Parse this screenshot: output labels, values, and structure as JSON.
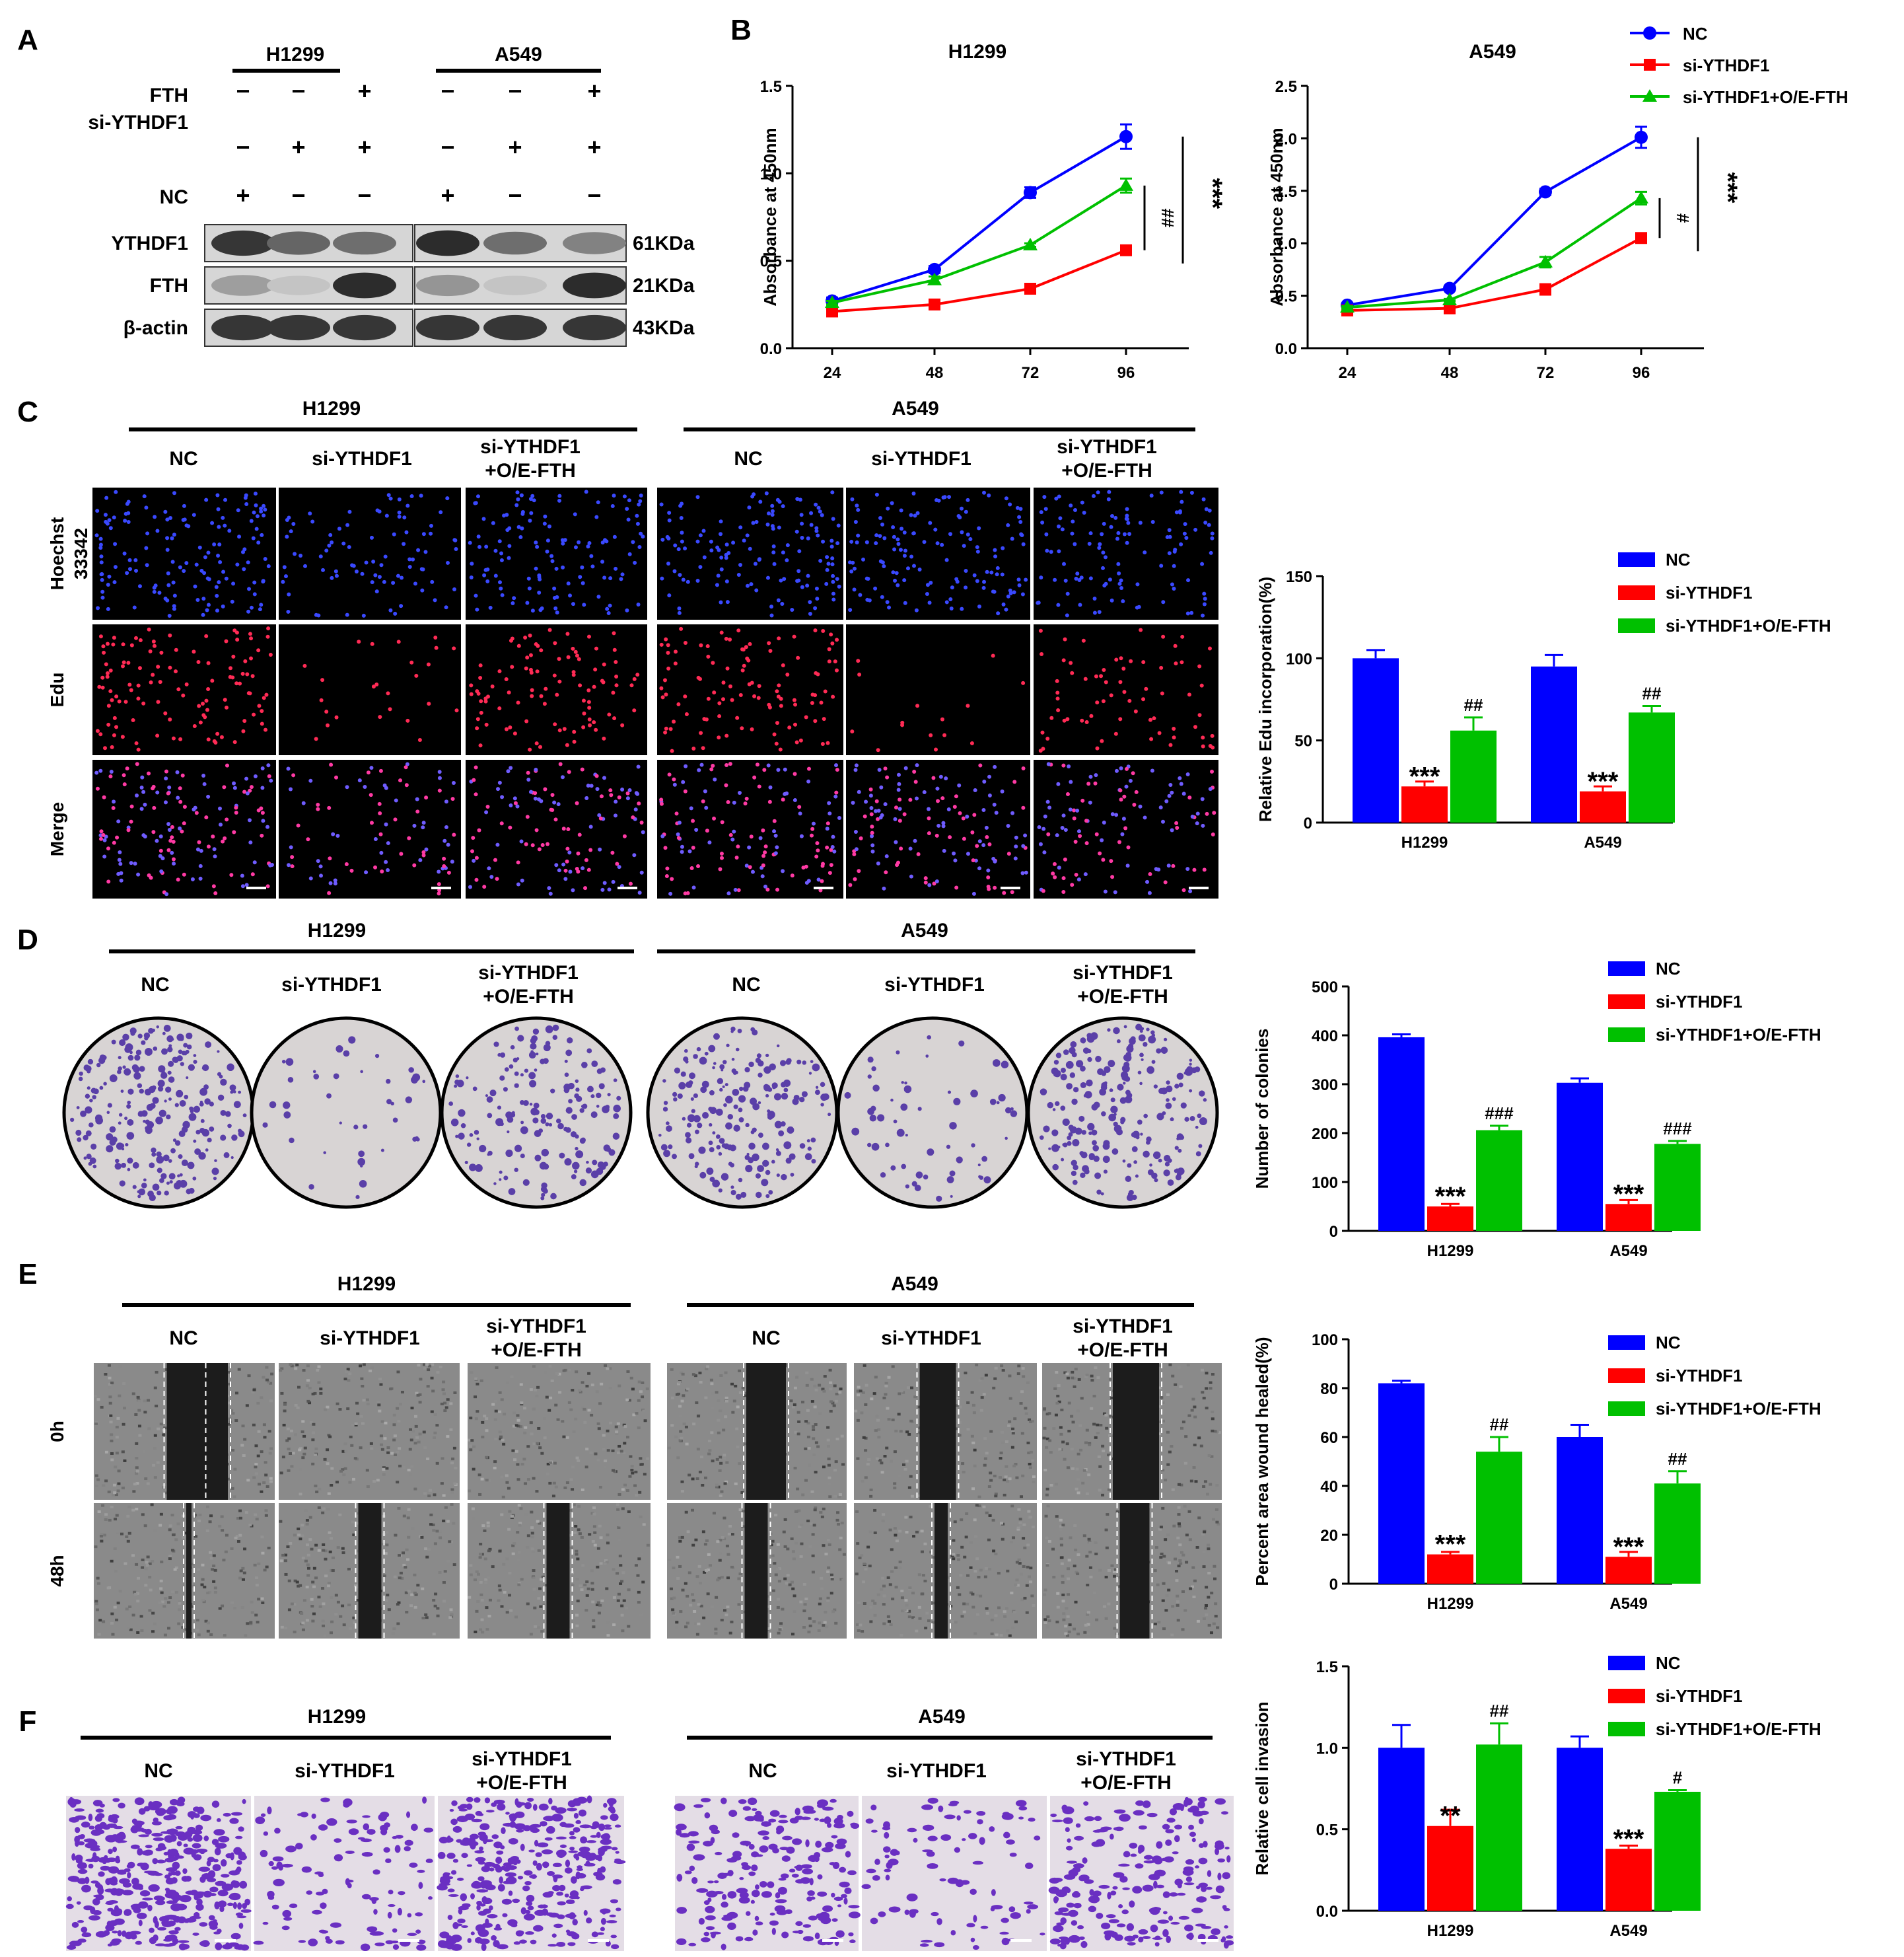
{
  "colors": {
    "nc": "#0000ff",
    "si": "#ff0000",
    "oe": "#00c000"
  },
  "groups": [
    "NC",
    "si-YTHDF1",
    "si-YTHDF1+O/E-FTH"
  ],
  "cells": [
    "H1299",
    "A549"
  ],
  "panelA": {
    "letter": "A",
    "cells": [
      "H1299",
      "A549"
    ],
    "rowFTH": "FTH",
    "rowSi": "si-YTHDF1",
    "rowNC": "NC",
    "signsFTH": [
      "−",
      "−",
      "+",
      "−",
      "−",
      "+"
    ],
    "signsSi": [
      "−",
      "+",
      "+",
      "−",
      "+",
      "+"
    ],
    "signsNC": [
      "+",
      "−",
      "−",
      "+",
      "−",
      "−"
    ],
    "blots": [
      {
        "name": "YTHDF1",
        "size": "61KDa",
        "intensity": [
          0.85,
          0.6,
          0.55,
          0.9,
          0.55,
          0.45
        ]
      },
      {
        "name": "FTH",
        "size": "21KDa",
        "intensity": [
          0.3,
          0.1,
          0.9,
          0.35,
          0.1,
          0.9
        ]
      },
      {
        "name": "β-actin",
        "size": "43KDa",
        "intensity": [
          0.85,
          0.85,
          0.85,
          0.85,
          0.85,
          0.85
        ]
      }
    ]
  },
  "panelB": {
    "letter": "B",
    "legend": [
      "NC",
      "si-YTHDF1",
      "si-YTHDF1+O/E-FTH"
    ],
    "chart_data": [
      {
        "type": "line",
        "title": "H1299",
        "ylabel": "Absorbance at 450nm",
        "x": [
          24,
          48,
          72,
          96
        ],
        "ylim": [
          0,
          1.5
        ],
        "yticks": [
          "0.0",
          "0.5",
          "1.0",
          "1.5"
        ],
        "series": [
          {
            "name": "NC",
            "values": [
              0.27,
              0.45,
              0.89,
              1.21
            ],
            "err": [
              0.02,
              0.02,
              0.03,
              0.07
            ]
          },
          {
            "name": "si-YTHDF1",
            "values": [
              0.21,
              0.25,
              0.34,
              0.56
            ],
            "err": [
              0.01,
              0.01,
              0.01,
              0.02
            ]
          },
          {
            "name": "si-YTHDF1+O/E-FTH",
            "values": [
              0.26,
              0.39,
              0.59,
              0.93
            ],
            "err": [
              0.01,
              0.02,
              0.01,
              0.04
            ]
          }
        ],
        "sig": [
          "##",
          "***"
        ]
      },
      {
        "type": "line",
        "title": "A549",
        "ylabel": "Absorbance at 450nm",
        "x": [
          24,
          48,
          72,
          96
        ],
        "ylim": [
          0,
          2.5
        ],
        "yticks": [
          "0.0",
          "0.5",
          "1.0",
          "1.5",
          "2.0",
          "2.5"
        ],
        "series": [
          {
            "name": "NC",
            "values": [
              0.41,
              0.57,
              1.49,
              2.01
            ],
            "err": [
              0.02,
              0.02,
              0.03,
              0.1
            ]
          },
          {
            "name": "si-YTHDF1",
            "values": [
              0.36,
              0.38,
              0.56,
              1.05
            ],
            "err": [
              0.01,
              0.01,
              0.05,
              0.03
            ]
          },
          {
            "name": "si-YTHDF1+O/E-FTH",
            "values": [
              0.39,
              0.46,
              0.82,
              1.43
            ],
            "err": [
              0.01,
              0.01,
              0.05,
              0.06
            ]
          }
        ],
        "sig": [
          "#",
          "***"
        ]
      }
    ]
  },
  "panelC": {
    "letter": "C",
    "rows": [
      "Hoechst 33342",
      "Edu",
      "Merge"
    ],
    "chart_data": {
      "type": "bar",
      "ylabel": "Relative Edu incorporation(%)",
      "categories": [
        "H1299",
        "A549"
      ],
      "ylim": [
        0,
        150
      ],
      "yticks": [
        "0",
        "50",
        "100",
        "150"
      ],
      "series": [
        {
          "name": "NC",
          "values": [
            100,
            95
          ],
          "err": [
            5,
            7
          ]
        },
        {
          "name": "si-YTHDF1",
          "values": [
            22,
            19
          ],
          "err": [
            3,
            3
          ],
          "labels": [
            "***",
            "***"
          ]
        },
        {
          "name": "si-YTHDF1+O/E-FTH",
          "values": [
            56,
            67
          ],
          "err": [
            8,
            4
          ],
          "labels": [
            "##",
            "##"
          ]
        }
      ]
    }
  },
  "panelD": {
    "letter": "D",
    "chart_data": {
      "type": "bar",
      "ylabel": "Number of colonies",
      "categories": [
        "H1299",
        "A549"
      ],
      "ylim": [
        0,
        500
      ],
      "yticks": [
        "0",
        "100",
        "200",
        "300",
        "400",
        "500"
      ],
      "series": [
        {
          "name": "NC",
          "values": [
            396,
            303
          ],
          "err": [
            6,
            9
          ]
        },
        {
          "name": "si-YTHDF1",
          "values": [
            50,
            55
          ],
          "err": [
            5,
            8
          ],
          "labels": [
            "***",
            "***"
          ]
        },
        {
          "name": "si-YTHDF1+O/E-FTH",
          "values": [
            206,
            178
          ],
          "err": [
            9,
            6
          ],
          "labels": [
            "###",
            "###"
          ]
        }
      ]
    }
  },
  "panelE": {
    "letter": "E",
    "rows": [
      "0h",
      "48h"
    ],
    "chart_data": {
      "type": "bar",
      "ylabel": "Percent area wound healed(%)",
      "categories": [
        "H1299",
        "A549"
      ],
      "ylim": [
        0,
        100
      ],
      "yticks": [
        "0",
        "20",
        "40",
        "60",
        "80",
        "100"
      ],
      "series": [
        {
          "name": "NC",
          "values": [
            82,
            60
          ],
          "err": [
            1,
            5
          ]
        },
        {
          "name": "si-YTHDF1",
          "values": [
            12,
            11
          ],
          "err": [
            1,
            2
          ],
          "labels": [
            "***",
            "***"
          ]
        },
        {
          "name": "si-YTHDF1+O/E-FTH",
          "values": [
            54,
            41
          ],
          "err": [
            6,
            5
          ],
          "labels": [
            "##",
            "##"
          ]
        }
      ]
    }
  },
  "panelF": {
    "letter": "F",
    "chart_data": {
      "type": "bar",
      "ylabel": "Relative cell invasion",
      "categories": [
        "H1299",
        "A549"
      ],
      "ylim": [
        0,
        1.5
      ],
      "yticks": [
        "0.0",
        "0.5",
        "1.0",
        "1.5"
      ],
      "series": [
        {
          "name": "NC",
          "values": [
            1.0,
            1.0
          ],
          "err": [
            0.14,
            0.07
          ]
        },
        {
          "name": "si-YTHDF1",
          "values": [
            0.52,
            0.38
          ],
          "err": [
            0.1,
            0.02
          ],
          "labels": [
            "**",
            "***"
          ]
        },
        {
          "name": "si-YTHDF1+O/E-FTH",
          "values": [
            1.02,
            0.73
          ],
          "err": [
            0.13,
            0.01
          ],
          "labels": [
            "##",
            "#"
          ]
        }
      ]
    }
  }
}
